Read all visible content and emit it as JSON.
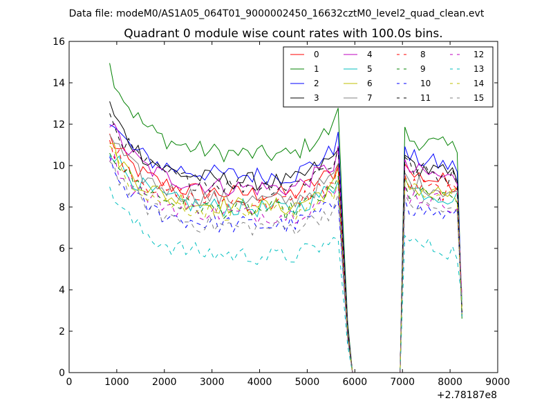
{
  "suptitle": "Data file: modeM0/AS1A05_064T01_9000002450_16632cztM0_level2_quad_clean.evt",
  "chart_data": {
    "type": "line",
    "title": "Quadrant 0 module wise count rates with 100.0s bins.",
    "xlabel": "",
    "ylabel": "",
    "x_offset_label": "+2.78187e8",
    "xlim": [
      0,
      9000
    ],
    "ylim": [
      0,
      16
    ],
    "xticks": [
      0,
      1000,
      2000,
      3000,
      4000,
      5000,
      6000,
      7000,
      8000,
      9000
    ],
    "yticks": [
      0,
      2,
      4,
      6,
      8,
      10,
      12,
      14,
      16
    ],
    "legend_position": "top-right",
    "legend_columns": 4,
    "x": {
      "start": 850,
      "step": 100,
      "end": 8250
    },
    "gap_segments": [
      {
        "from": 5650,
        "to": 5900,
        "description": "drop to zero"
      },
      {
        "from": 5900,
        "to": 6950,
        "description": "zero"
      },
      {
        "from": 6950,
        "to": 7050,
        "description": "rise"
      }
    ],
    "series": [
      {
        "name": "0",
        "color": "#ff0000",
        "dash": "solid",
        "start": 11.4,
        "plateau": 8.6,
        "seg2": 9.6
      },
      {
        "name": "1",
        "color": "#008000",
        "dash": "solid",
        "start": 14.8,
        "plateau": 10.5,
        "seg2": 11.3
      },
      {
        "name": "2",
        "color": "#0000ff",
        "dash": "solid",
        "start": 12.2,
        "plateau": 9.5,
        "seg2": 10.4
      },
      {
        "name": "3",
        "color": "#000000",
        "dash": "solid",
        "start": 12.9,
        "plateau": 9.2,
        "seg2": 10.0
      },
      {
        "name": "4",
        "color": "#bf00bf",
        "dash": "solid",
        "start": 12.1,
        "plateau": 8.9,
        "seg2": 9.8
      },
      {
        "name": "5",
        "color": "#00bfbf",
        "dash": "solid",
        "start": 10.9,
        "plateau": 7.9,
        "seg2": 8.9
      },
      {
        "name": "6",
        "color": "#bfbf00",
        "dash": "solid",
        "start": 11.1,
        "plateau": 8.0,
        "seg2": 9.0
      },
      {
        "name": "7",
        "color": "#808080",
        "dash": "solid",
        "start": 11.6,
        "plateau": 8.3,
        "seg2": 9.2
      },
      {
        "name": "8",
        "color": "#ff0000",
        "dash": "dashed",
        "start": 11.2,
        "plateau": 8.2,
        "seg2": 9.1
      },
      {
        "name": "9",
        "color": "#008000",
        "dash": "dashed",
        "start": 10.9,
        "plateau": 7.8,
        "seg2": 8.7
      },
      {
        "name": "10",
        "color": "#0000ff",
        "dash": "dashed",
        "start": 10.0,
        "plateau": 7.1,
        "seg2": 8.0
      },
      {
        "name": "11",
        "color": "#000000",
        "dash": "dashed",
        "start": 12.4,
        "plateau": 9.0,
        "seg2": 9.9
      },
      {
        "name": "12",
        "color": "#bf00bf",
        "dash": "dashed",
        "start": 10.6,
        "plateau": 7.6,
        "seg2": 8.6
      },
      {
        "name": "13",
        "color": "#00bfbf",
        "dash": "dashed",
        "start": 9.0,
        "plateau": 5.6,
        "seg2": 6.3
      },
      {
        "name": "14",
        "color": "#bfbf00",
        "dash": "dashed",
        "start": 10.8,
        "plateau": 7.7,
        "seg2": 8.8
      },
      {
        "name": "15",
        "color": "#808080",
        "dash": "dashed",
        "start": 10.3,
        "plateau": 7.0,
        "seg2": 8.2
      }
    ]
  }
}
